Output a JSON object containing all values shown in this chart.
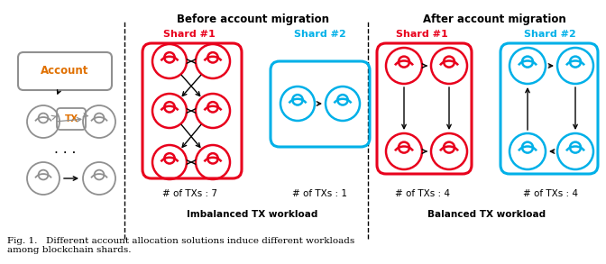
{
  "fig_width": 6.72,
  "fig_height": 2.93,
  "dpi": 100,
  "background_color": "#ffffff",
  "red_color": "#e8001c",
  "blue_color": "#00b0e8",
  "gray_color": "#909090",
  "black_color": "#000000",
  "orange_color": "#e07000",
  "caption": "Fig. 1.   Different account allocation solutions induce different workloads\namong blockchain shards.",
  "before_title": "Before account migration",
  "after_title": "After account migration",
  "shard1_label": "Shard #1",
  "shard2_label": "Shard #2",
  "account_label": "Account",
  "tx_label": "TX",
  "before_tx1": "# of TXs : 7",
  "before_tx2": "# of TXs : 1",
  "after_tx1": "# of TXs : 4",
  "after_tx2": "# of TXs : 4",
  "imbalanced_label": "Imbalanced TX workload",
  "balanced_label": "Balanced TX workload"
}
